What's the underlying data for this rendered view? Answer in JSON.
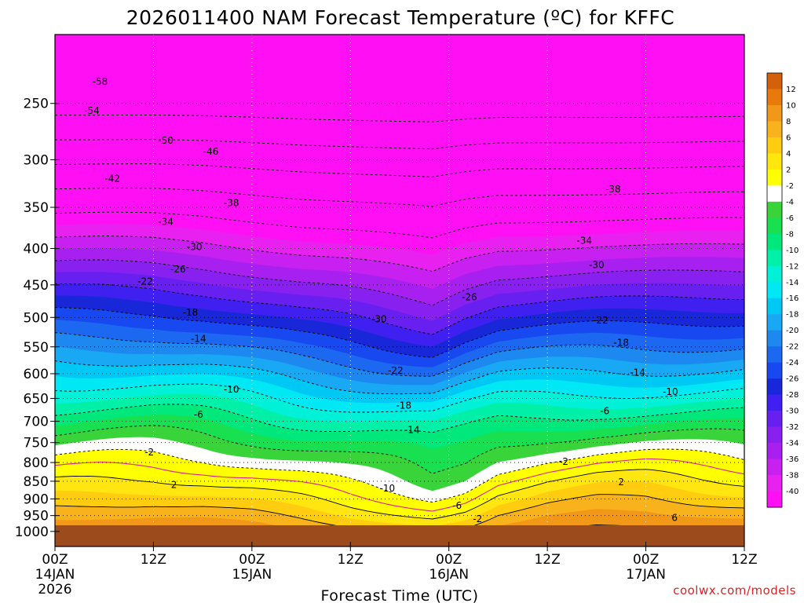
{
  "chart_data": {
    "type": "time-height contour",
    "title": "2026011400 NAM Forecast Temperature (ºC) for KFFC",
    "xlabel": "Forecast Time (UTC)",
    "ylabel": "",
    "credit": "coolwx.com/models",
    "y_scale": "log-pressure (inverted)",
    "ylim": [
      1050,
      200
    ],
    "xlim_hours": [
      0,
      84
    ],
    "y_ticks": [
      250,
      300,
      350,
      400,
      450,
      500,
      550,
      600,
      650,
      700,
      750,
      800,
      850,
      900,
      950,
      1000
    ],
    "x_ticks": [
      {
        "label": "00Z",
        "sub": "14JAN",
        "sub2": "2026"
      },
      {
        "label": "12Z",
        "sub": "",
        "sub2": ""
      },
      {
        "label": "00Z",
        "sub": "15JAN",
        "sub2": ""
      },
      {
        "label": "12Z",
        "sub": "",
        "sub2": ""
      },
      {
        "label": "00Z",
        "sub": "16JAN",
        "sub2": ""
      },
      {
        "label": "12Z",
        "sub": "",
        "sub2": ""
      },
      {
        "label": "00Z",
        "sub": "17JAN",
        "sub2": ""
      },
      {
        "label": "12Z",
        "sub": "",
        "sub2": ""
      }
    ],
    "colorbar": {
      "labels": [
        "12",
        "10",
        "8",
        "6",
        "4",
        "2",
        "-2",
        "-4",
        "-6",
        "-8",
        "-10",
        "-12",
        "-14",
        "-16",
        "-18",
        "-20",
        "-22",
        "-24",
        "-26",
        "-28",
        "-30",
        "-32",
        "-34",
        "-36",
        "-38",
        "-40"
      ],
      "colors": [
        "#d4600c",
        "#e87a0c",
        "#f29818",
        "#f8b21c",
        "#ffcc10",
        "#ffe610",
        "#ffff00",
        "#ffffff",
        "#38d43a",
        "#18e050",
        "#00e87c",
        "#00f0a8",
        "#00f0d8",
        "#00e8f4",
        "#00c8f4",
        "#18a8f4",
        "#1c88f0",
        "#1c68f0",
        "#1848f0",
        "#1828d8",
        "#4020f0",
        "#6820f0",
        "#8820f0",
        "#a820f0",
        "#c820f0",
        "#e820f0",
        "#ff10f4"
      ]
    },
    "contour_labels": [
      {
        "text": "-58",
        "h": 5.5,
        "p": 233
      },
      {
        "text": "-54",
        "h": 4.5,
        "p": 256
      },
      {
        "text": "-50",
        "h": 13.5,
        "p": 282
      },
      {
        "text": "-46",
        "h": 19,
        "p": 292
      },
      {
        "text": "-42",
        "h": 7,
        "p": 319
      },
      {
        "text": "-38",
        "h": 21.5,
        "p": 345
      },
      {
        "text": "-34",
        "h": 13.5,
        "p": 367
      },
      {
        "text": "-30",
        "h": 17,
        "p": 398
      },
      {
        "text": "-26",
        "h": 15,
        "p": 428
      },
      {
        "text": "-22",
        "h": 11,
        "p": 445
      },
      {
        "text": "-18",
        "h": 16.5,
        "p": 492
      },
      {
        "text": "-14",
        "h": 17.5,
        "p": 536
      },
      {
        "text": "-10",
        "h": 21.5,
        "p": 631
      },
      {
        "text": "-6",
        "h": 17.5,
        "p": 685
      },
      {
        "text": "-2",
        "h": 11.5,
        "p": 774
      },
      {
        "text": "2",
        "h": 14.5,
        "p": 860
      },
      {
        "text": "-30",
        "h": 39.5,
        "p": 503
      },
      {
        "text": "-26",
        "h": 50.5,
        "p": 468
      },
      {
        "text": "-22",
        "h": 41.5,
        "p": 594
      },
      {
        "text": "-18",
        "h": 42.5,
        "p": 665
      },
      {
        "text": "-14",
        "h": 43.5,
        "p": 720
      },
      {
        "text": "-10",
        "h": 40.5,
        "p": 870
      },
      {
        "text": "-6",
        "h": 49,
        "p": 920
      },
      {
        "text": "-2",
        "h": 51.5,
        "p": 960
      },
      {
        "text": "-38",
        "h": 68,
        "p": 330
      },
      {
        "text": "-34",
        "h": 64.5,
        "p": 390
      },
      {
        "text": "-30",
        "h": 66,
        "p": 422
      },
      {
        "text": "-22",
        "h": 66.5,
        "p": 505
      },
      {
        "text": "-18",
        "h": 69,
        "p": 543
      },
      {
        "text": "-14",
        "h": 71,
        "p": 598
      },
      {
        "text": "-10",
        "h": 75,
        "p": 636
      },
      {
        "text": "-6",
        "h": 67,
        "p": 677
      },
      {
        "text": "-2",
        "h": 62,
        "p": 798
      },
      {
        "text": "2",
        "h": 69,
        "p": 852
      },
      {
        "text": "6",
        "h": 75.5,
        "p": 957
      }
    ]
  }
}
